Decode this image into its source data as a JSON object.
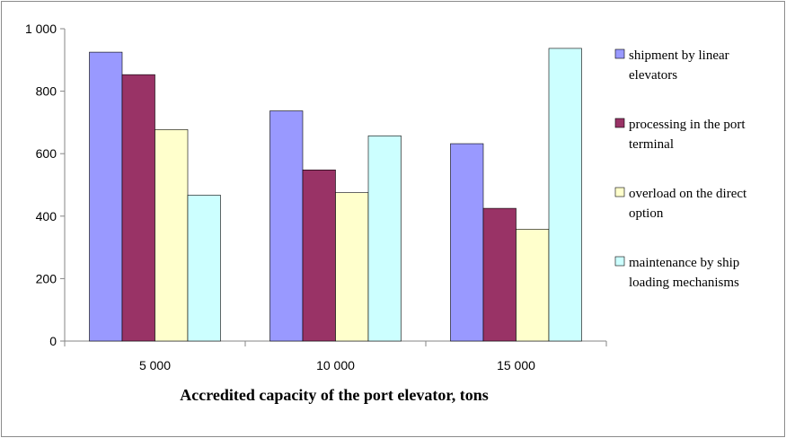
{
  "chart_data": {
    "type": "bar",
    "categories": [
      "5 000",
      "10 000",
      "15 000"
    ],
    "series": [
      {
        "name": "shipment by linear elevators",
        "name_lines": [
          "shipment by linear",
          "elevators"
        ],
        "values": [
          925,
          737,
          632
        ],
        "color": "#9999ff"
      },
      {
        "name": "processing in the port terminal",
        "name_lines": [
          "processing in the port",
          "terminal"
        ],
        "values": [
          853,
          548,
          425
        ],
        "color": "#993366"
      },
      {
        "name": "overload on the direct option",
        "name_lines": [
          "overload on the direct",
          "option"
        ],
        "values": [
          677,
          475,
          358
        ],
        "color": "#ffffcc"
      },
      {
        "name": "maintenance by ship loading mechanisms",
        "name_lines": [
          "maintenance by ship",
          "loading mechanisms"
        ],
        "values": [
          467,
          657,
          937
        ],
        "color": "#ccffff"
      }
    ],
    "xlabel": "Accredited capacity of the port elevator, tons",
    "ylabel": "",
    "ylim": [
      0,
      1000
    ],
    "yticks": [
      0,
      200,
      400,
      600,
      800,
      1000
    ],
    "ytick_labels": [
      "0",
      "200",
      "400",
      "600",
      "800",
      "1 000"
    ],
    "grid": false,
    "legend": "right"
  }
}
